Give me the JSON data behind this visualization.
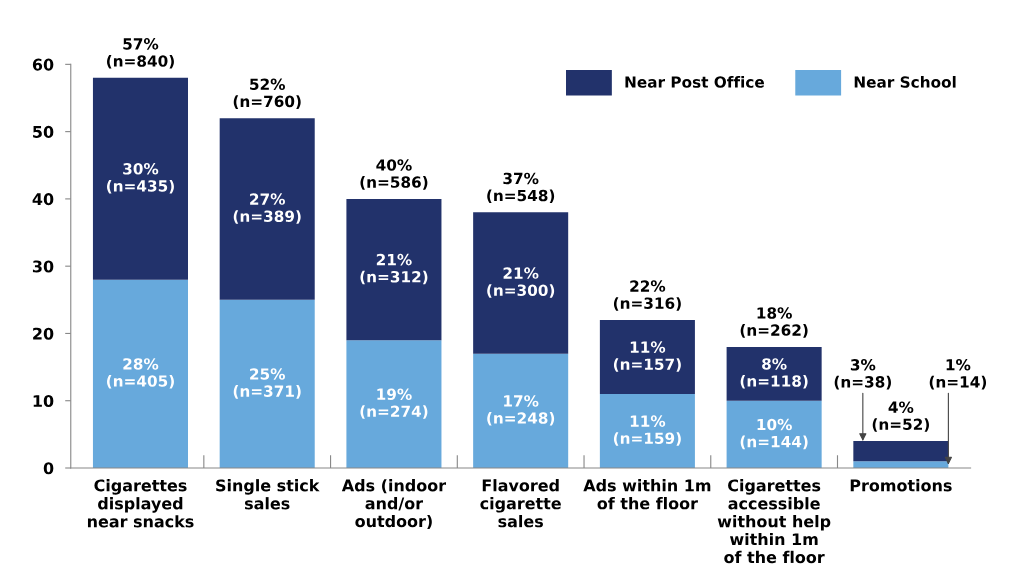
{
  "chart_data": {
    "type": "bar",
    "stacked": true,
    "categories": [
      "Cigarettes\ndisplayed\nnear snacks",
      "Single stick\nsales",
      "Ads (indoor\nand/or\noutdoor)",
      "Flavored\ncigarette\nsales",
      "Ads within 1m\nof the floor",
      "Cigarettes\naccessible\nwithout help\nwithin 1m\nof the floor",
      "Promotions"
    ],
    "series": [
      {
        "name": "Near School",
        "color": "#67a9dc",
        "values": [
          28,
          25,
          19,
          17,
          11,
          10,
          1
        ],
        "value_labels": [
          "28%\n(n=405)",
          "25%\n(n=371)",
          "19%\n(n=274)",
          "17%\n(n=248)",
          "11%\n(n=159)",
          "10%\n(n=144)",
          "1%\n(n=14)"
        ]
      },
      {
        "name": "Near Post Office",
        "color": "#22326b",
        "values": [
          30,
          27,
          21,
          21,
          11,
          8,
          3
        ],
        "value_labels": [
          "30%\n(n=435)",
          "27%\n(n=389)",
          "21%\n(n=312)",
          "21%\n(n=300)",
          "11%\n(n=157)",
          "8%\n(n=118)",
          "3%\n(n=38)"
        ]
      }
    ],
    "totals": [
      "57%\n(n=840)",
      "52%\n(n=760)",
      "40%\n(n=586)",
      "37%\n(n=548)",
      "22%\n(n=316)",
      "18%\n(n=262)",
      "4%\n(n=52)"
    ],
    "ylim": [
      0,
      60
    ],
    "yticks": [
      0,
      10,
      20,
      30,
      40,
      50,
      60
    ],
    "grid": false,
    "legend": "top right"
  }
}
